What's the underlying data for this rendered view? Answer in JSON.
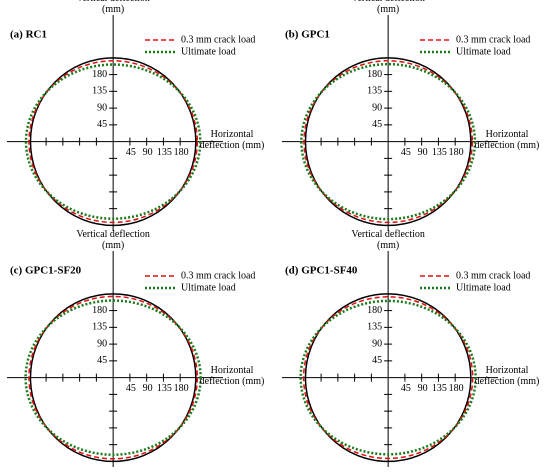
{
  "chart_data": [
    {
      "type": "ellipse",
      "title": "(a) RC1",
      "x_label": "Horizontal deflection (mm)",
      "y_label": "Vertical deflection (mm)",
      "xlim": [
        -285,
        295
      ],
      "ylim": [
        -240,
        340
      ],
      "xticks": [
        45,
        90,
        135,
        180
      ],
      "yticks": [
        45,
        90,
        135,
        180
      ],
      "minor_xticks": [
        -180,
        -135,
        -90,
        -45
      ],
      "minor_yticks": [
        -180,
        -135,
        -90,
        -45
      ],
      "series": [
        {
          "color": "#000000",
          "line_style": "solid",
          "x_radius": 222,
          "y_radius": 225
        },
        {
          "name": "0.3 mm crack load",
          "color": "#e01010",
          "line_style": "dashed",
          "x_radius": 226,
          "y_radius": 217
        },
        {
          "name": "Ultimate load",
          "color": "#1a7a1a",
          "line_style": "dotted",
          "x_radius": 234,
          "y_radius": 207
        }
      ]
    },
    {
      "type": "ellipse",
      "title": "(b) GPC1",
      "x_label": "Horizontal deflection (mm)",
      "y_label": "Vertical deflection (mm)",
      "xlim": [
        -285,
        295
      ],
      "ylim": [
        -240,
        340
      ],
      "xticks": [
        45,
        90,
        135,
        180
      ],
      "yticks": [
        45,
        90,
        135,
        180
      ],
      "minor_xticks": [
        -180,
        -135,
        -90,
        -45
      ],
      "minor_yticks": [
        -180,
        -135,
        -90,
        -45
      ],
      "series": [
        {
          "color": "#000000",
          "line_style": "solid",
          "x_radius": 222,
          "y_radius": 225
        },
        {
          "name": "0.3 mm crack load",
          "color": "#e01010",
          "line_style": "dashed",
          "x_radius": 226,
          "y_radius": 217
        },
        {
          "name": "Ultimate load",
          "color": "#1a7a1a",
          "line_style": "dotted",
          "x_radius": 233,
          "y_radius": 208
        }
      ]
    },
    {
      "type": "ellipse",
      "title": "(c) GPC1-SF20",
      "x_label": "Horizontal deflection (mm)",
      "y_label": "Vertical deflection (mm)",
      "xlim": [
        -285,
        295
      ],
      "ylim": [
        -240,
        340
      ],
      "xticks": [
        45,
        90,
        135,
        180
      ],
      "yticks": [
        45,
        90,
        135,
        180
      ],
      "minor_xticks": [
        -180,
        -135,
        -90,
        -45
      ],
      "minor_yticks": [
        -180,
        -135,
        -90,
        -45
      ],
      "series": [
        {
          "color": "#000000",
          "line_style": "solid",
          "x_radius": 222,
          "y_radius": 225
        },
        {
          "name": "0.3 mm crack load",
          "color": "#e01010",
          "line_style": "dashed",
          "x_radius": 226,
          "y_radius": 218
        },
        {
          "name": "Ultimate load",
          "color": "#1a7a1a",
          "line_style": "dotted",
          "x_radius": 235,
          "y_radius": 207
        }
      ]
    },
    {
      "type": "ellipse",
      "title": "(d) GPC1-SF40",
      "x_label": "Horizontal deflection (mm)",
      "y_label": "Vertical deflection (mm)",
      "xlim": [
        -285,
        295
      ],
      "ylim": [
        -240,
        340
      ],
      "xticks": [
        45,
        90,
        135,
        180
      ],
      "yticks": [
        45,
        90,
        135,
        180
      ],
      "minor_xticks": [
        -180,
        -135,
        -90,
        -45
      ],
      "minor_yticks": [
        -180,
        -135,
        -90,
        -45
      ],
      "series": [
        {
          "color": "#000000",
          "line_style": "solid",
          "x_radius": 222,
          "y_radius": 225
        },
        {
          "name": "0.3 mm crack load",
          "color": "#e01010",
          "line_style": "dashed",
          "x_radius": 227,
          "y_radius": 217
        },
        {
          "name": "Ultimate load",
          "color": "#1a7a1a",
          "line_style": "dotted",
          "x_radius": 235,
          "y_radius": 206
        }
      ]
    }
  ]
}
